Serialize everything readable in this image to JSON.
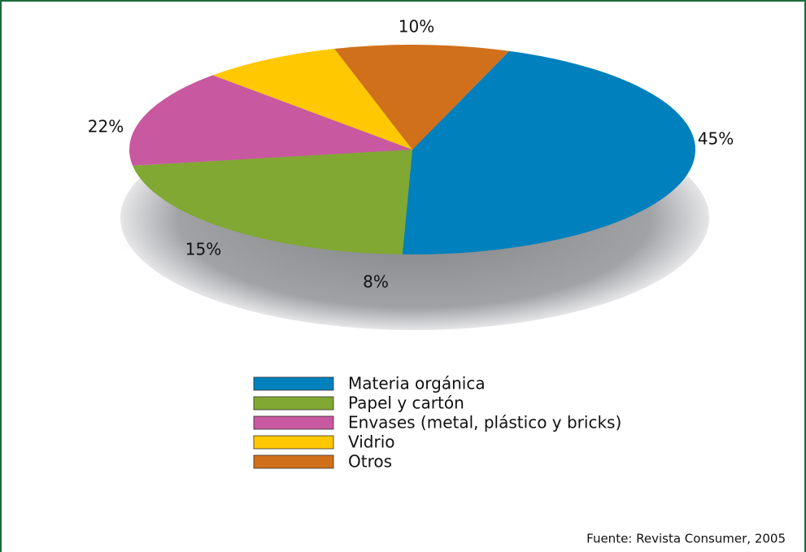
{
  "chart_data": {
    "type": "pie",
    "categories": [
      "Materia orgánica",
      "Papel y cartón",
      "Envases (metal, plástico y bricks)",
      "Vidrio",
      "Otros"
    ],
    "values": [
      45,
      22,
      15,
      8,
      10
    ],
    "value_labels": [
      "45%",
      "22%",
      "15%",
      "8%",
      "10%"
    ],
    "colors": [
      "#0080bc",
      "#80a832",
      "#c858a0",
      "#ffc800",
      "#d0701a"
    ],
    "source": "Fuente: Revista Consumer, 2005"
  }
}
